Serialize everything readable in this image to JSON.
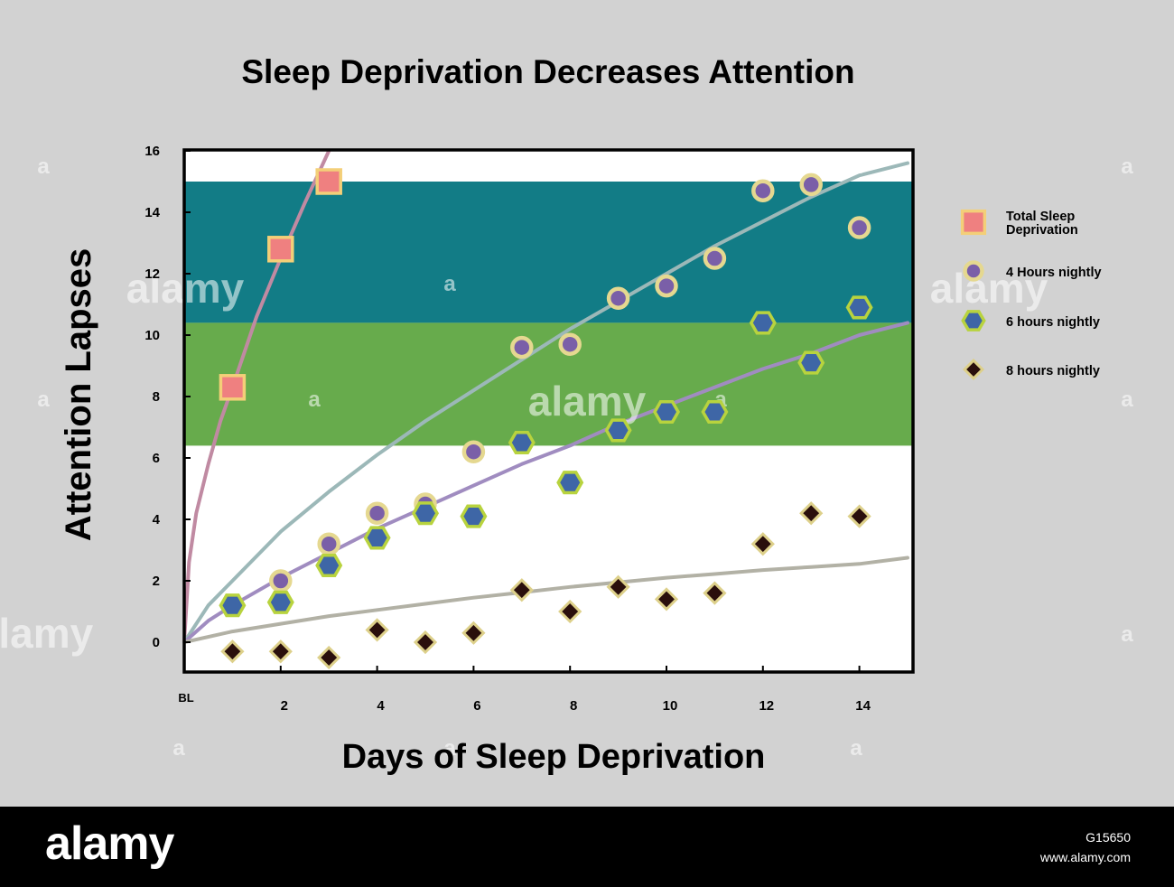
{
  "chart_data": {
    "type": "scatter",
    "title": "Sleep Deprivation Decreases Attention",
    "xlabel": "Days of Sleep Deprivation",
    "ylabel": "Attention Lapses",
    "xlim": [
      0,
      15
    ],
    "ylim": [
      -1,
      16
    ],
    "x_ticks": [
      {
        "value": 0,
        "label": "BL"
      },
      {
        "value": 2,
        "label": "2"
      },
      {
        "value": 4,
        "label": "4"
      },
      {
        "value": 6,
        "label": "6"
      },
      {
        "value": 8,
        "label": "8"
      },
      {
        "value": 10,
        "label": "10"
      },
      {
        "value": 12,
        "label": "12"
      },
      {
        "value": 14,
        "label": "14"
      }
    ],
    "y_ticks": [
      {
        "value": 0,
        "label": "0"
      },
      {
        "value": 2,
        "label": "2"
      },
      {
        "value": 4,
        "label": "4"
      },
      {
        "value": 6,
        "label": "6"
      },
      {
        "value": 8,
        "label": "8"
      },
      {
        "value": 10,
        "label": "10"
      },
      {
        "value": 12,
        "label": "12"
      },
      {
        "value": 14,
        "label": "14"
      },
      {
        "value": 16,
        "label": "16"
      }
    ],
    "bands": [
      {
        "from": 10.4,
        "to": 15.0,
        "color": "#127c86"
      },
      {
        "from": 6.4,
        "to": 10.4,
        "color": "#67ab4c"
      }
    ],
    "grid": false,
    "legend_position": "right",
    "series": [
      {
        "name": "Total Sleep Deprivation",
        "marker": "square",
        "fill": "#ef8080",
        "stroke": "#f3cf78",
        "curve_color": "#c08aa2",
        "x": [
          1,
          2,
          3
        ],
        "y": [
          8.3,
          12.8,
          15.0
        ],
        "curve": [
          [
            0,
            0
          ],
          [
            0.1,
            2.6
          ],
          [
            0.25,
            4.2
          ],
          [
            0.5,
            5.8
          ],
          [
            0.75,
            7.2
          ],
          [
            1,
            8.3
          ],
          [
            1.5,
            10.6
          ],
          [
            2,
            12.5
          ],
          [
            2.5,
            14.3
          ],
          [
            3,
            16
          ]
        ]
      },
      {
        "name": "4 Hours nightly",
        "marker": "circle",
        "fill": "#7a5fa8",
        "stroke": "#e5d890",
        "curve_color": "#9cb8b8",
        "x": [
          2,
          3,
          4,
          5,
          6,
          7,
          8,
          9,
          10,
          11,
          12,
          13,
          14
        ],
        "y": [
          2.0,
          3.2,
          4.2,
          4.5,
          6.2,
          9.6,
          9.7,
          11.2,
          11.6,
          12.5,
          14.7,
          14.9,
          13.5
        ],
        "curve": [
          [
            0,
            0
          ],
          [
            0.5,
            1.2
          ],
          [
            1,
            2.0
          ],
          [
            2,
            3.6
          ],
          [
            3,
            4.9
          ],
          [
            4,
            6.1
          ],
          [
            5,
            7.2
          ],
          [
            6,
            8.2
          ],
          [
            7,
            9.2
          ],
          [
            8,
            10.2
          ],
          [
            9,
            11.1
          ],
          [
            10,
            12.0
          ],
          [
            11,
            12.9
          ],
          [
            12,
            13.7
          ],
          [
            13,
            14.5
          ],
          [
            14,
            15.2
          ],
          [
            15,
            15.6
          ]
        ]
      },
      {
        "name": "6 hours nightly",
        "marker": "hexagon",
        "fill": "#3e66a6",
        "stroke": "#b8d33e",
        "curve_color": "#a08cc0",
        "x": [
          1,
          2,
          3,
          4,
          5,
          6,
          7,
          8,
          9,
          10,
          11,
          12,
          13,
          14
        ],
        "y": [
          1.2,
          1.3,
          2.5,
          3.4,
          4.2,
          4.1,
          6.5,
          5.2,
          6.9,
          7.5,
          7.5,
          10.4,
          9.1,
          10.9
        ],
        "curve": [
          [
            0,
            0
          ],
          [
            0.5,
            0.7
          ],
          [
            1,
            1.2
          ],
          [
            2,
            2.1
          ],
          [
            3,
            2.9
          ],
          [
            4,
            3.7
          ],
          [
            5,
            4.4
          ],
          [
            6,
            5.1
          ],
          [
            7,
            5.8
          ],
          [
            8,
            6.4
          ],
          [
            9,
            7.1
          ],
          [
            10,
            7.7
          ],
          [
            11,
            8.3
          ],
          [
            12,
            8.9
          ],
          [
            13,
            9.4
          ],
          [
            14,
            10.0
          ],
          [
            15,
            10.4
          ]
        ]
      },
      {
        "name": "8 hours nightly",
        "marker": "diamond",
        "fill": "#2a0f0c",
        "stroke": "#ddd08a",
        "curve_color": "#b2b1a5",
        "x": [
          1,
          2,
          3,
          4,
          5,
          6,
          7,
          8,
          9,
          10,
          11,
          12,
          13,
          14
        ],
        "y": [
          -0.3,
          -0.3,
          -0.5,
          0.4,
          0.0,
          0.3,
          1.7,
          1.0,
          1.8,
          1.4,
          1.6,
          3.2,
          4.2,
          4.1
        ],
        "curve": [
          [
            0,
            0
          ],
          [
            1,
            0.35
          ],
          [
            2,
            0.6
          ],
          [
            3,
            0.85
          ],
          [
            4,
            1.05
          ],
          [
            5,
            1.25
          ],
          [
            6,
            1.45
          ],
          [
            7,
            1.62
          ],
          [
            8,
            1.8
          ],
          [
            9,
            1.95
          ],
          [
            10,
            2.1
          ],
          [
            11,
            2.22
          ],
          [
            12,
            2.35
          ],
          [
            13,
            2.45
          ],
          [
            14,
            2.55
          ],
          [
            15,
            2.75
          ]
        ]
      }
    ],
    "legend": [
      {
        "series": 0,
        "lines": [
          "Total Sleep",
          "Deprivation"
        ]
      },
      {
        "series": 1,
        "lines": [
          "4 Hours nightly"
        ]
      },
      {
        "series": 2,
        "lines": [
          "6 hours nightly"
        ]
      },
      {
        "series": 3,
        "lines": [
          "8 hours nightly"
        ]
      }
    ]
  },
  "watermark": {
    "text": "alamy",
    "small": "a"
  },
  "footer": {
    "logo": "alamy",
    "image_id": "G15650",
    "site": "www.alamy.com"
  }
}
